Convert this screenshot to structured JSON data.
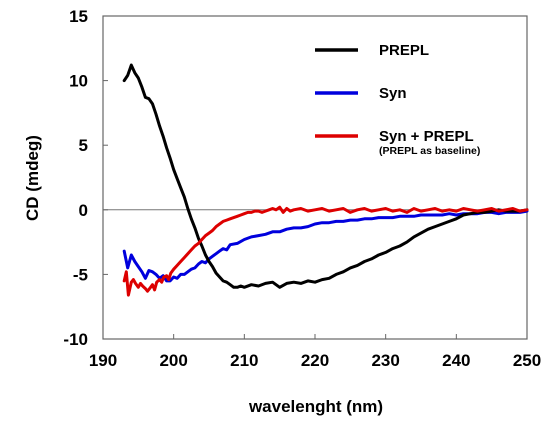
{
  "chart_data": {
    "type": "line",
    "xlabel": "wavelenght (nm)",
    "ylabel": "CD (mdeg)",
    "xlim": [
      190,
      250
    ],
    "ylim": [
      -10,
      15
    ],
    "xticks": [
      190,
      200,
      210,
      220,
      230,
      240,
      250
    ],
    "yticks": [
      15,
      10,
      5,
      0,
      -5,
      -10
    ],
    "zero_line": true,
    "grid": false,
    "legend_position": "top-right",
    "series": [
      {
        "name": "PREPL",
        "color": "#000000",
        "x": [
          193,
          193.5,
          194,
          194.5,
          195,
          195.5,
          196,
          196.5,
          197,
          197.5,
          198,
          198.5,
          199,
          199.5,
          200,
          200.5,
          201,
          201.5,
          202,
          202.5,
          203,
          203.5,
          204,
          204.5,
          205,
          205.5,
          206,
          206.5,
          207,
          207.5,
          208,
          208.5,
          209,
          209.5,
          210,
          211,
          212,
          213,
          214,
          215,
          216,
          217,
          218,
          219,
          220,
          221,
          222,
          223,
          224,
          225,
          226,
          227,
          228,
          229,
          230,
          231,
          232,
          233,
          234,
          235,
          236,
          237,
          238,
          239,
          240,
          241,
          242,
          243,
          244,
          245,
          246,
          247,
          248,
          249,
          250
        ],
        "y": [
          10.0,
          10.4,
          11.2,
          10.6,
          10.2,
          9.5,
          8.7,
          8.6,
          8.2,
          7.4,
          6.5,
          5.7,
          4.8,
          4.0,
          3.1,
          2.4,
          1.7,
          1.0,
          0.1,
          -0.7,
          -1.4,
          -2.2,
          -2.8,
          -3.5,
          -4.0,
          -4.4,
          -4.9,
          -5.2,
          -5.5,
          -5.6,
          -5.8,
          -6.0,
          -6.0,
          -5.9,
          -6.0,
          -5.8,
          -5.9,
          -5.7,
          -5.6,
          -6.0,
          -5.7,
          -5.6,
          -5.7,
          -5.5,
          -5.6,
          -5.4,
          -5.3,
          -5.0,
          -4.8,
          -4.5,
          -4.3,
          -4.0,
          -3.8,
          -3.5,
          -3.3,
          -3.0,
          -2.8,
          -2.5,
          -2.1,
          -1.8,
          -1.5,
          -1.3,
          -1.1,
          -0.9,
          -0.7,
          -0.4,
          -0.3,
          -0.2,
          -0.2,
          -0.1,
          0.0,
          -0.1,
          -0.1,
          -0.1,
          0.0
        ]
      },
      {
        "name": "Syn",
        "color": "#0000dd",
        "x": [
          193,
          193.5,
          194,
          194.5,
          195,
          195.5,
          196,
          196.5,
          197,
          197.5,
          198,
          198.5,
          199,
          199.5,
          200,
          200.5,
          201,
          201.5,
          202,
          202.5,
          203,
          203.5,
          204,
          204.5,
          205,
          205.5,
          206,
          206.5,
          207,
          207.5,
          208,
          209,
          210,
          211,
          212,
          213,
          214,
          215,
          216,
          217,
          218,
          219,
          220,
          221,
          222,
          223,
          224,
          225,
          226,
          227,
          228,
          229,
          230,
          231,
          232,
          233,
          234,
          235,
          236,
          237,
          238,
          239,
          240,
          241,
          242,
          243,
          244,
          245,
          246,
          247,
          248,
          249,
          250
        ],
        "y": [
          -3.2,
          -4.5,
          -3.5,
          -4.0,
          -4.4,
          -4.8,
          -5.3,
          -4.7,
          -4.8,
          -5.0,
          -5.3,
          -5.1,
          -5.5,
          -5.5,
          -5.2,
          -5.3,
          -5.0,
          -5.0,
          -4.8,
          -4.6,
          -4.5,
          -4.2,
          -4.0,
          -4.1,
          -3.8,
          -3.6,
          -3.4,
          -3.2,
          -3.0,
          -3.1,
          -2.7,
          -2.6,
          -2.3,
          -2.1,
          -2.0,
          -1.9,
          -1.7,
          -1.7,
          -1.5,
          -1.4,
          -1.4,
          -1.3,
          -1.1,
          -1.0,
          -1.0,
          -0.9,
          -0.9,
          -0.8,
          -0.8,
          -0.7,
          -0.7,
          -0.6,
          -0.6,
          -0.6,
          -0.5,
          -0.5,
          -0.5,
          -0.4,
          -0.4,
          -0.4,
          -0.4,
          -0.3,
          -0.4,
          -0.3,
          -0.3,
          -0.3,
          -0.2,
          -0.2,
          -0.3,
          -0.2,
          -0.2,
          -0.2,
          -0.1
        ]
      },
      {
        "name": "Syn + PREPL",
        "color": "#dd0000",
        "x": [
          193,
          193.3,
          193.6,
          194,
          194.3,
          194.6,
          195,
          195.3,
          195.6,
          196,
          196.3,
          196.6,
          197,
          197.3,
          197.6,
          198,
          198.3,
          198.6,
          199,
          199.3,
          199.6,
          200,
          200.5,
          201,
          201.5,
          202,
          202.5,
          203,
          203.5,
          204,
          204.5,
          205,
          205.5,
          206,
          206.5,
          207,
          207.5,
          208,
          208.5,
          209,
          209.5,
          210,
          210.5,
          211,
          211.5,
          212,
          212.5,
          213,
          213.5,
          214,
          214.5,
          215,
          215.5,
          216,
          216.5,
          217,
          218,
          219,
          220,
          221,
          222,
          223,
          224,
          225,
          226,
          227,
          228,
          229,
          230,
          231,
          232,
          233,
          234,
          235,
          236,
          237,
          238,
          239,
          240,
          241,
          242,
          243,
          244,
          245,
          246,
          247,
          248,
          249,
          250
        ],
        "y": [
          -5.5,
          -4.8,
          -6.6,
          -5.6,
          -5.4,
          -5.7,
          -6.0,
          -5.7,
          -5.9,
          -6.1,
          -6.3,
          -6.1,
          -5.8,
          -6.2,
          -5.6,
          -5.4,
          -5.6,
          -5.2,
          -5.1,
          -5.4,
          -4.9,
          -4.6,
          -4.3,
          -4.0,
          -3.7,
          -3.4,
          -3.1,
          -2.8,
          -2.6,
          -2.3,
          -2.0,
          -1.8,
          -1.6,
          -1.3,
          -1.1,
          -0.9,
          -0.8,
          -0.7,
          -0.6,
          -0.5,
          -0.4,
          -0.3,
          -0.2,
          -0.2,
          -0.1,
          -0.1,
          -0.2,
          -0.1,
          0.0,
          0.1,
          0.0,
          0.2,
          -0.2,
          0.1,
          -0.1,
          0.0,
          0.1,
          -0.1,
          0.0,
          0.1,
          -0.1,
          0.0,
          0.1,
          -0.2,
          0.0,
          0.1,
          -0.1,
          0.0,
          0.1,
          -0.1,
          0.0,
          -0.2,
          0.1,
          -0.1,
          0.0,
          0.1,
          -0.1,
          0.0,
          -0.1,
          0.1,
          0.0,
          -0.1,
          0.0,
          0.1,
          -0.1,
          0.0,
          0.1,
          -0.1,
          0.0
        ]
      }
    ],
    "legend": [
      {
        "label": "PREPL",
        "sublabel": ""
      },
      {
        "label": "Syn",
        "sublabel": ""
      },
      {
        "label": "Syn + PREPL",
        "sublabel": "(PREPL as baseline)"
      }
    ]
  }
}
